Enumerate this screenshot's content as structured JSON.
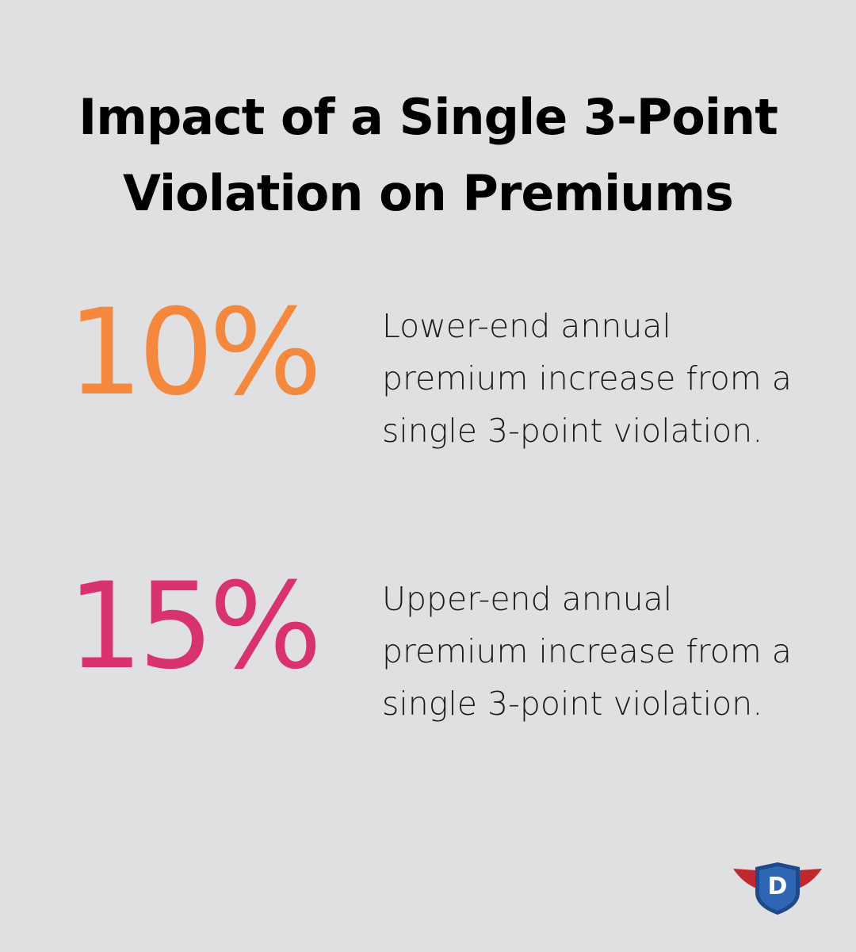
{
  "header": {
    "title": "Impact of a Single 3-Point Violation on Premiums"
  },
  "stats": [
    {
      "value": "10%",
      "description": "Lower-end annual premium increase from a single 3-point violation."
    },
    {
      "value": "15%",
      "description": "Upper-end annual premium increase from a single 3-point violation."
    }
  ],
  "logo": {
    "letter": "D"
  }
}
